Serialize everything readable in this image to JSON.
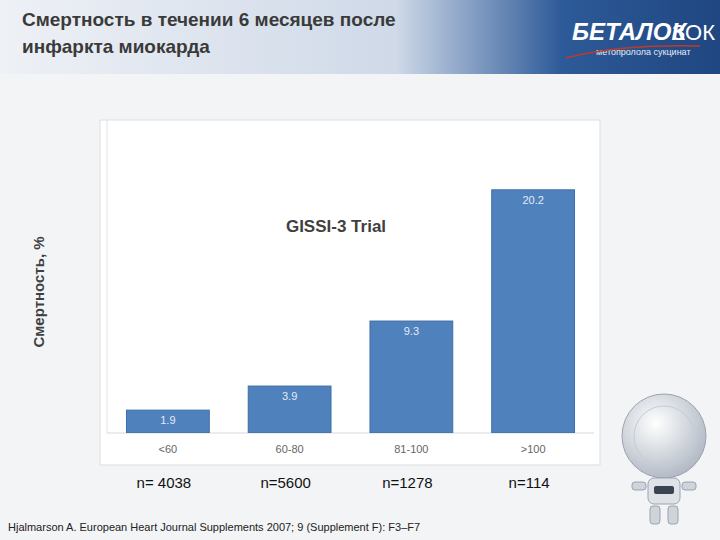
{
  "chart_data": {
    "type": "bar",
    "title": "Смертность в течении 6 месяцев после инфаркта миокарда",
    "ylabel": "Смертность, %",
    "annotations": [
      "GISSI-3 Trial"
    ],
    "categories": [
      "<60",
      "60-80",
      "81-100",
      ">100"
    ],
    "values": [
      1.9,
      3.9,
      9.3,
      20.2
    ],
    "sample_sizes": [
      "n= 4038",
      "n=5600",
      "n=1278",
      "n=114"
    ],
    "color": "#4f81bd",
    "ylim": [
      0,
      26
    ],
    "data_labels": true,
    "tick_labels": "x",
    "grid": false
  },
  "slide": {
    "source": "Hjalmarson A. European Heart Journal Supplements 2007; 9 (Supplement F): F3–F7",
    "logo": {
      "brand": "БЕТАЛОК",
      "suffix": "ЗОК",
      "subtitle": "метопролола сукцинат"
    }
  }
}
